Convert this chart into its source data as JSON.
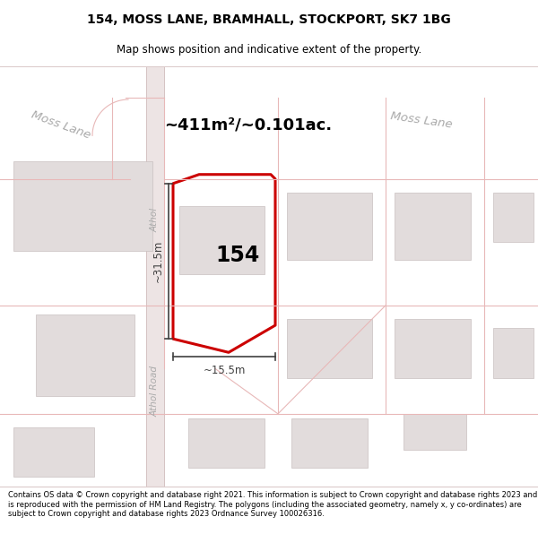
{
  "title_line1": "154, MOSS LANE, BRAMHALL, STOCKPORT, SK7 1BG",
  "title_line2": "Map shows position and indicative extent of the property.",
  "footer_text": "Contains OS data © Crown copyright and database right 2021. This information is subject to Crown copyright and database rights 2023 and is reproduced with the permission of HM Land Registry. The polygons (including the associated geometry, namely x, y co-ordinates) are subject to Crown copyright and database rights 2023 Ordnance Survey 100026316.",
  "area_text": "~411m²/~0.101ac.",
  "label_154": "154",
  "dim_height": "~31.5m",
  "dim_width": "~15.5m",
  "road_moss_lane_left": "Moss Lane",
  "road_moss_lane_right": "Moss Lane",
  "road_athol_top": "Athol",
  "road_athol_bottom": "Athol Road",
  "bg_color": "#ffffff",
  "map_bg": "#f7f2f2",
  "road_color": "#e8d4d4",
  "plot_outline_color": "#cc0000",
  "building_color": "#ddd8d8",
  "parcel_line_color": "#e8b8b8",
  "dim_line_color": "#404040",
  "road_label_color": "#aaaaaa",
  "text_color": "#000000",
  "footer_divider_color": "#cccccc"
}
